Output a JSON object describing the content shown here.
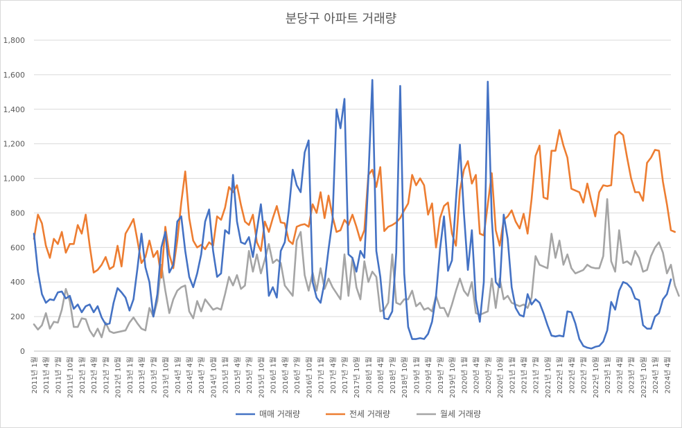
{
  "chart_data": {
    "type": "line",
    "title": "분당구 아파트 거래량",
    "xlabel": "",
    "ylabel": "",
    "ylim": [
      0,
      1800
    ],
    "y_ticks": [
      "0",
      "200",
      "400",
      "600",
      "800",
      "1,000",
      "1,200",
      "1,400",
      "1,600",
      "1,800"
    ],
    "x_tick_labels": [
      "2011년 1월",
      "2011년 4월",
      "2011년 7월",
      "2011년 10월",
      "2012년 1월",
      "2012년 4월",
      "2012년 7월",
      "2012년 10월",
      "2013년 1월",
      "2013년 4월",
      "2013년 7월",
      "2013년 10월",
      "2014년 1월",
      "2014년 4월",
      "2014년 7월",
      "2014년 10월",
      "2015년 1월",
      "2015년 4월",
      "2015년 7월",
      "2015년 10월",
      "2016년 1월",
      "2016년 4월",
      "2016년 7월",
      "2016년 10월",
      "2017년 1월",
      "2017년 4월",
      "2017년 7월",
      "2017년 10월",
      "2018년 1월",
      "2018년 4월",
      "2018년 7월",
      "2018년 10월",
      "2019년 1월",
      "2019년 4월",
      "2019년 7월",
      "2019년 10월",
      "2020년 1월",
      "2020년 4월",
      "2020년 7월",
      "2020년 10월",
      "2021년 1월",
      "2021년 4월",
      "2021년 7월",
      "2021년 10월",
      "2022년 1월",
      "2022년 4월",
      "2022년 7월",
      "2022년 10월",
      "2023년 1월",
      "2023년 4월",
      "2023년 7월",
      "2023년 10월",
      "2024년 1월",
      "2024년 4월"
    ],
    "legend": [
      "매매 거래량",
      "전세 거래량",
      "월세 거래량"
    ],
    "legend_position": "bottom",
    "grid": true,
    "series": [
      {
        "name": "매매 거래량",
        "color": "#4472C4",
        "values": [
          680,
          460,
          330,
          280,
          300,
          295,
          340,
          345,
          305,
          320,
          245,
          270,
          225,
          260,
          270,
          225,
          260,
          195,
          155,
          160,
          280,
          365,
          340,
          310,
          235,
          300,
          480,
          680,
          485,
          400,
          200,
          330,
          600,
          690,
          455,
          500,
          750,
          780,
          580,
          430,
          370,
          450,
          560,
          750,
          820,
          580,
          430,
          450,
          700,
          680,
          1020,
          750,
          630,
          620,
          660,
          545,
          700,
          850,
          640,
          320,
          370,
          310,
          580,
          630,
          810,
          1050,
          960,
          920,
          1150,
          1220,
          400,
          310,
          280,
          400,
          590,
          760,
          1400,
          1290,
          1460,
          560,
          540,
          460,
          580,
          540,
          1000,
          1570,
          580,
          430,
          190,
          185,
          230,
          570,
          1535,
          450,
          140,
          70,
          70,
          75,
          70,
          100,
          170,
          320,
          590,
          780,
          465,
          525,
          875,
          1195,
          800,
          470,
          700,
          300,
          170,
          400,
          1560,
          770,
          400,
          370,
          790,
          650,
          370,
          250,
          210,
          200,
          330,
          270,
          300,
          280,
          220,
          150,
          90,
          85,
          90,
          85,
          230,
          225,
          160,
          70,
          30,
          20,
          15,
          25,
          30,
          55,
          120,
          285,
          240,
          350,
          400,
          390,
          365,
          305,
          295,
          150,
          130,
          130,
          200,
          220,
          300,
          330,
          415
        ]
      },
      {
        "name": "전세 거래량",
        "color": "#ED7D31",
        "values": [
          650,
          790,
          740,
          610,
          540,
          650,
          620,
          690,
          570,
          620,
          620,
          730,
          680,
          790,
          610,
          455,
          470,
          500,
          545,
          475,
          490,
          610,
          490,
          680,
          720,
          765,
          640,
          510,
          545,
          640,
          545,
          580,
          425,
          720,
          560,
          480,
          640,
          860,
          1040,
          770,
          640,
          600,
          615,
          590,
          630,
          610,
          780,
          760,
          830,
          950,
          920,
          960,
          845,
          750,
          730,
          790,
          630,
          580,
          750,
          690,
          770,
          840,
          745,
          740,
          640,
          620,
          720,
          730,
          735,
          720,
          850,
          800,
          920,
          770,
          900,
          780,
          690,
          700,
          760,
          730,
          790,
          720,
          640,
          700,
          1020,
          1050,
          950,
          1065,
          695,
          720,
          730,
          745,
          770,
          815,
          855,
          1020,
          960,
          1000,
          960,
          790,
          855,
          600,
          770,
          840,
          860,
          680,
          610,
          930,
          1050,
          1100,
          970,
          1020,
          680,
          670,
          850,
          1030,
          700,
          610,
          760,
          780,
          815,
          750,
          710,
          795,
          680,
          880,
          1130,
          1190,
          890,
          880,
          1160,
          1160,
          1280,
          1190,
          1120,
          940,
          930,
          920,
          860,
          970,
          870,
          780,
          920,
          960,
          955,
          960,
          1250,
          1270,
          1250,
          1120,
          1000,
          920,
          920,
          870,
          1090,
          1120,
          1165,
          1160,
          980,
          850,
          700,
          690
        ]
      },
      {
        "name": "월세 거래량",
        "color": "#A5A5A5",
        "values": [
          155,
          125,
          150,
          220,
          130,
          170,
          165,
          240,
          360,
          290,
          140,
          140,
          190,
          185,
          120,
          85,
          130,
          80,
          165,
          115,
          105,
          110,
          115,
          120,
          165,
          195,
          160,
          130,
          120,
          250,
          200,
          290,
          500,
          350,
          220,
          300,
          350,
          370,
          380,
          230,
          190,
          290,
          230,
          300,
          270,
          240,
          250,
          240,
          330,
          430,
          380,
          440,
          360,
          380,
          580,
          460,
          560,
          450,
          530,
          620,
          510,
          530,
          510,
          380,
          350,
          320,
          640,
          690,
          440,
          350,
          455,
          350,
          480,
          360,
          420,
          370,
          335,
          300,
          560,
          320,
          540,
          370,
          300,
          520,
          400,
          460,
          430,
          230,
          240,
          280,
          560,
          280,
          270,
          300,
          300,
          350,
          260,
          280,
          240,
          250,
          230,
          320,
          250,
          250,
          200,
          270,
          350,
          420,
          350,
          320,
          400,
          220,
          210,
          220,
          230,
          420,
          250,
          420,
          300,
          320,
          280,
          270,
          260,
          270,
          250,
          310,
          550,
          500,
          490,
          480,
          680,
          540,
          640,
          500,
          560,
          480,
          450,
          460,
          470,
          500,
          485,
          480,
          480,
          550,
          880,
          520,
          460,
          700,
          510,
          520,
          500,
          580,
          540,
          460,
          470,
          550,
          600,
          630,
          570,
          450,
          500,
          380,
          320
        ]
      }
    ]
  }
}
